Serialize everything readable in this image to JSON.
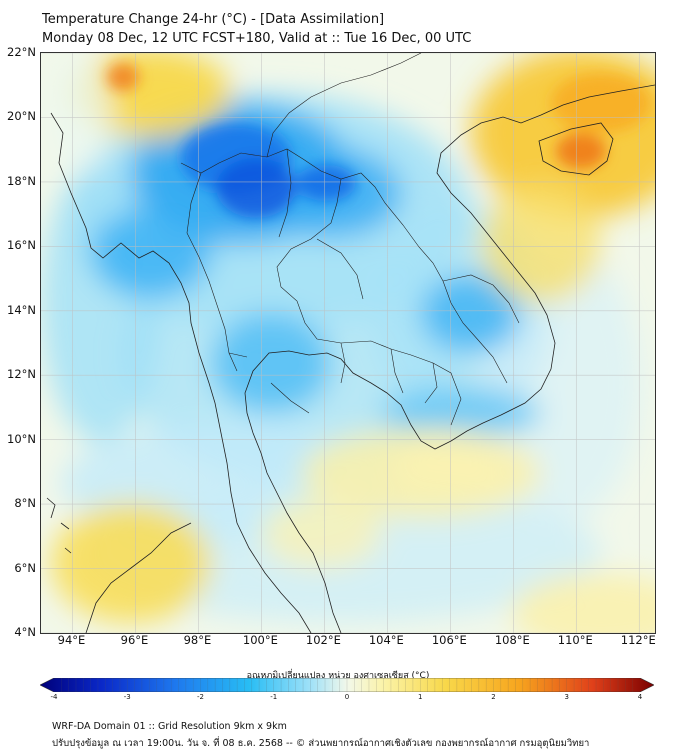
{
  "header": {
    "title_line1": "Temperature Change 24-hr (°C) - [Data Assimilation]",
    "title_line2": "Monday 08 Dec, 12 UTC FCST+180, Valid at :: Tue 16 Dec, 00 UTC"
  },
  "map": {
    "lat_range": [
      4,
      22
    ],
    "lon_range": [
      93,
      112.5
    ],
    "lat_ticks": [
      "22°N",
      "20°N",
      "18°N",
      "16°N",
      "14°N",
      "12°N",
      "10°N",
      "8°N",
      "6°N",
      "4°N"
    ],
    "lat_values": [
      22,
      20,
      18,
      16,
      14,
      12,
      10,
      8,
      6,
      4
    ],
    "lon_ticks": [
      "94°E",
      "96°E",
      "98°E",
      "100°E",
      "102°E",
      "104°E",
      "106°E",
      "108°E",
      "110°E",
      "112°E"
    ],
    "lon_values": [
      94,
      96,
      98,
      100,
      102,
      104,
      106,
      108,
      110,
      112
    ],
    "gridlines": true,
    "colors": {
      "cold_max": "#0a50dc",
      "cold": "#1e9bf0",
      "cool": "#78d2f5",
      "pale_cool": "#c8ecfa",
      "neutral": "#f2f8ea",
      "warm_pale": "#fbf3b4",
      "warm": "#f8d84a",
      "warm_strong": "#f7aa1e",
      "hot": "#f07a1a"
    }
  },
  "colorbar": {
    "title": "อุณหภูมิเปลี่ยนแปลง หน่วย องศาเซลเซียส (°C)",
    "min": -4,
    "max": 4,
    "ticks": [
      "-4",
      "-3",
      "-2",
      "-1",
      "0",
      "1",
      "2",
      "3",
      "4"
    ],
    "tick_values": [
      -4,
      -3,
      -2,
      -1,
      0,
      1,
      2,
      3,
      4
    ]
  },
  "footer": {
    "line1": "WRF-DA Domain 01 :: Grid Resolution 9km x 9km",
    "line2": "ปรับปรุงข้อมูล ณ เวลา 19:00น. วัน จ. ที่ 08 ธ.ค. 2568 -- © ส่วนพยากรณ์อากาศเชิงตัวเลข กองพยากรณ์อากาศ กรมอุตุนิยมวิทยา"
  }
}
